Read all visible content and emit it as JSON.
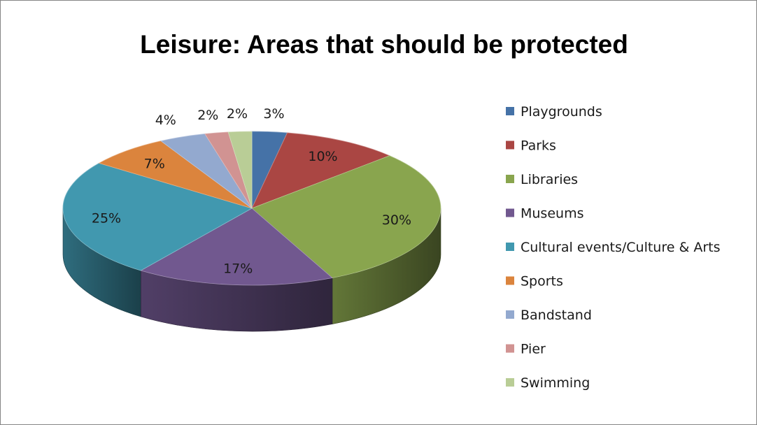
{
  "chart_data": {
    "type": "pie",
    "title": "Leisure: Areas that should be protected",
    "label_format": "percent",
    "legend_position": "right",
    "slices": [
      {
        "name": "Playgrounds",
        "value": 3,
        "label": "3%",
        "color": "#4572A7"
      },
      {
        "name": "Parks",
        "value": 10,
        "label": "10%",
        "color": "#AA4643"
      },
      {
        "name": "Libraries",
        "value": 30,
        "label": "30%",
        "color": "#89A54E"
      },
      {
        "name": "Museums",
        "value": 17,
        "label": "17%",
        "color": "#71588F"
      },
      {
        "name": "Cultural events/Culture & Arts",
        "value": 25,
        "label": "25%",
        "color": "#4198AF"
      },
      {
        "name": "Sports",
        "value": 7,
        "label": "7%",
        "color": "#DB843D"
      },
      {
        "name": "Bandstand",
        "value": 4,
        "label": "4%",
        "color": "#93A9CF"
      },
      {
        "name": "Pier",
        "value": 2,
        "label": "2%",
        "color": "#D19392"
      },
      {
        "name": "Swimming",
        "value": 2,
        "label": "2%",
        "color": "#B9CD96"
      }
    ]
  }
}
